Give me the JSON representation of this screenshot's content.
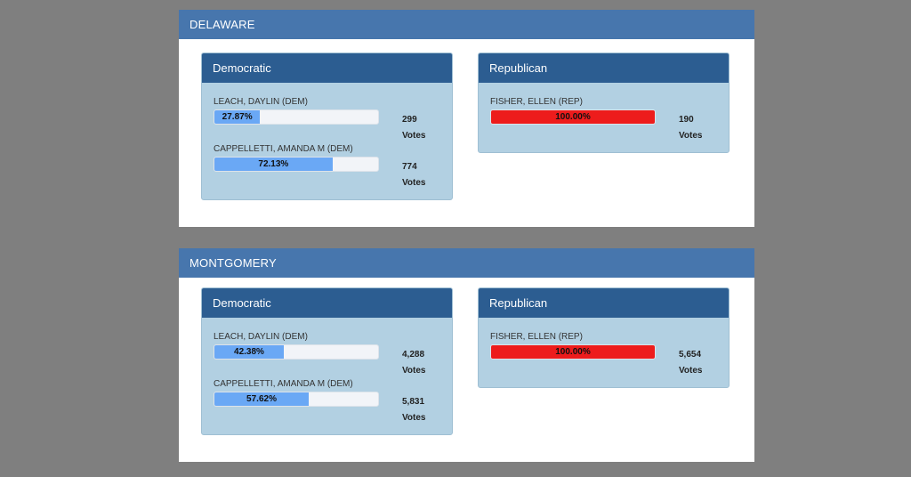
{
  "counties": [
    {
      "name": "DELAWARE",
      "parties": [
        {
          "name": "Democratic",
          "candidates": [
            {
              "name": "LEACH, DAYLIN (DEM)",
              "pct_label": "27.87%",
              "pct": 27.87,
              "votes": "299",
              "votes_label": "Votes"
            },
            {
              "name": "CAPPELLETTI, AMANDA M (DEM)",
              "pct_label": "72.13%",
              "pct": 72.13,
              "votes": "774",
              "votes_label": "Votes"
            }
          ]
        },
        {
          "name": "Republican",
          "candidates": [
            {
              "name": "FISHER, ELLEN (REP)",
              "pct_label": "100.00%",
              "pct": 100,
              "votes": "190",
              "votes_label": "Votes"
            }
          ]
        }
      ]
    },
    {
      "name": "MONTGOMERY",
      "parties": [
        {
          "name": "Democratic",
          "candidates": [
            {
              "name": "LEACH, DAYLIN (DEM)",
              "pct_label": "42.38%",
              "pct": 42.38,
              "votes": "4,288",
              "votes_label": "Votes"
            },
            {
              "name": "CAPPELLETTI, AMANDA M (DEM)",
              "pct_label": "57.62%",
              "pct": 57.62,
              "votes": "5,831",
              "votes_label": "Votes"
            }
          ]
        },
        {
          "name": "Republican",
          "candidates": [
            {
              "name": "FISHER, ELLEN (REP)",
              "pct_label": "100.00%",
              "pct": 100,
              "votes": "5,654",
              "votes_label": "Votes"
            }
          ]
        }
      ]
    }
  ],
  "colors": {
    "dem_bar": "#6aa8f5",
    "rep_bar": "#ed1c1c"
  }
}
